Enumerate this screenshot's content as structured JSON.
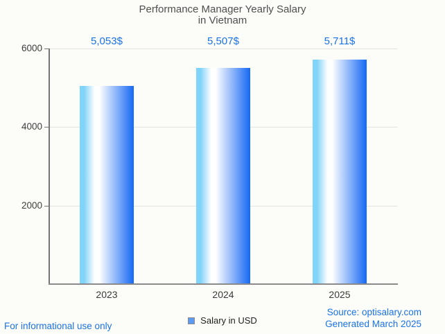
{
  "title": {
    "line1": "Performance Manager Yearly Salary",
    "line2": "in Vietnam"
  },
  "legend": {
    "label": "Salary in USD"
  },
  "footer": {
    "disclaimer": "For informational use only",
    "source": "Source: optisalary.com",
    "generated": "Generated March 2025"
  },
  "colors": {
    "accent_blue": "#1a73e8",
    "bar_gradient_left": "#80d3f9",
    "bar_gradient_mid": "#ffffff",
    "bar_gradient_right": "#1668f4",
    "legend_fill": "#5c9bf0",
    "legend_border": "#8c8c8c",
    "gridline": "#e3e3e3",
    "axis": "#757575",
    "background": "#fcfcf9"
  },
  "chart_data": {
    "type": "bar",
    "title": "Performance Manager Yearly Salary in Vietnam",
    "categories": [
      "2023",
      "2024",
      "2025"
    ],
    "series": [
      {
        "name": "Salary in USD",
        "values": [
          5053,
          5507,
          5711
        ]
      }
    ],
    "value_labels": [
      "5,053$",
      "5,507$",
      "5,711$"
    ],
    "xlabel": "",
    "ylabel": "",
    "ylim": [
      0,
      6000
    ],
    "yticks": [
      2000,
      4000,
      6000
    ],
    "grid": true,
    "legend_position": "bottom"
  }
}
